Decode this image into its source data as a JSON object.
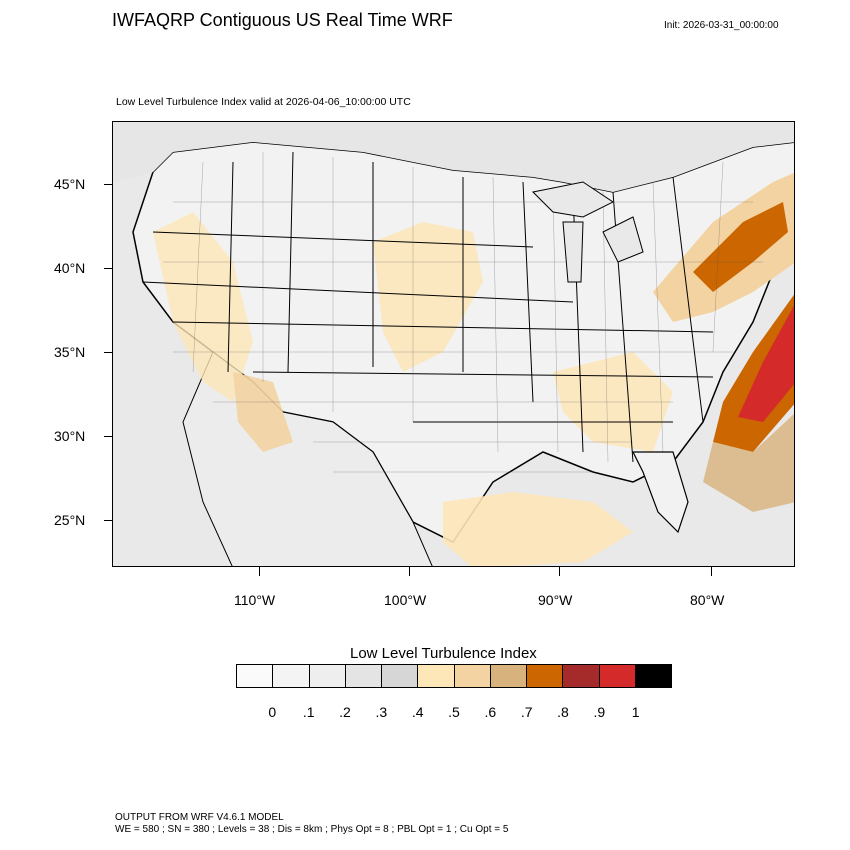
{
  "header": {
    "title": "IWFAQRP Contiguous US Real Time WRF",
    "init": "Init: 2026-03-31_00:00:00",
    "subtitle": "Low Level Turbulence Index valid at 2026-04-06_10:00:00 UTC"
  },
  "map": {
    "lat_labels": [
      "45°N",
      "40°N",
      "35°N",
      "30°N",
      "25°N"
    ],
    "lon_labels": [
      "110°W",
      "100°W",
      "90°W",
      "80°W"
    ],
    "colors": {
      "background": "#e9e9e9",
      "land_light": "#f2f2f2",
      "turb_low": "#fde6b8",
      "turb_mid": "#f3d3a2",
      "turb_med": "#d8b27c",
      "turb_high": "#cc6600",
      "turb_vhigh": "#a52a2a",
      "turb_max": "#d42a2a"
    }
  },
  "legend": {
    "title": "Low Level Turbulence Index",
    "colors": [
      "#fafafa",
      "#f4f4f4",
      "#eeeeee",
      "#e4e4e4",
      "#d6d6d6",
      "#fde6b8",
      "#f3d3a2",
      "#d8b27c",
      "#cc6600",
      "#a52a2a",
      "#d42a2a",
      "#000000"
    ],
    "labels": [
      "0",
      ".1",
      ".2",
      ".3",
      ".4",
      ".5",
      ".6",
      ".7",
      ".8",
      ".9",
      "1"
    ]
  },
  "footer": {
    "line1": "OUTPUT FROM WRF V4.6.1 MODEL",
    "line2": "WE = 580 ; SN = 380 ; Levels = 38 ; Dis = 8km ; Phys Opt = 8 ; PBL Opt = 1 ; Cu Opt = 5"
  }
}
